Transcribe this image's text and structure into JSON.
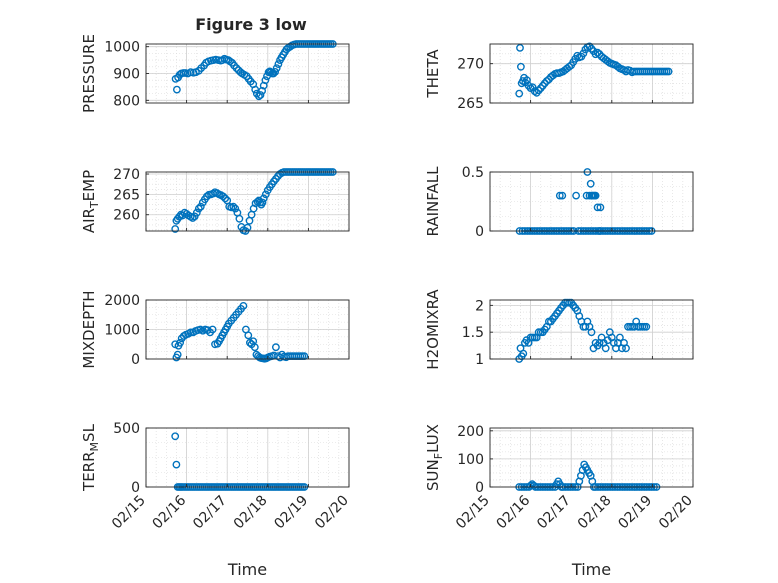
{
  "figure": {
    "title": "Figure 3 low",
    "marker_color": "#0072BD",
    "xlabel": "Time",
    "xtick_labels": [
      "02/15",
      "02/16",
      "02/17",
      "02/18",
      "02/19",
      "02/20"
    ]
  },
  "chart_data": [
    {
      "type": "scatter",
      "ylabel": "PRESSURE",
      "ylim": [
        790,
        1010
      ],
      "yticks": [
        800,
        900,
        1000
      ],
      "ytick_labels": [
        "800",
        "900",
        "1000"
      ],
      "xlim": [
        "02/15",
        "02/20"
      ],
      "grid": true,
      "x": [
        0.73,
        0.76,
        0.79,
        0.83,
        0.87,
        0.92,
        0.97,
        1.03,
        1.1,
        1.17,
        1.23,
        1.3,
        1.36,
        1.43,
        1.48,
        1.54,
        1.6,
        1.66,
        1.72,
        1.78,
        1.84,
        1.88,
        1.93,
        1.98,
        2.03,
        2.07,
        2.12,
        2.17,
        2.23,
        2.28,
        2.33,
        2.37,
        2.42,
        2.48,
        2.53,
        2.58,
        2.64,
        2.69,
        2.73,
        2.78,
        2.82,
        2.86,
        2.9,
        2.94,
        2.98,
        3.02,
        3.05,
        3.08,
        3.11,
        3.14,
        3.18,
        3.22,
        3.26,
        3.3,
        3.34,
        3.38,
        3.42,
        3.46,
        3.5,
        3.55,
        3.6,
        3.65,
        3.7,
        3.75,
        3.8,
        3.85,
        3.9,
        3.95,
        4.0,
        4.05,
        4.1,
        4.15,
        4.2,
        4.25,
        4.3,
        4.35,
        4.4,
        4.45,
        4.5,
        4.55,
        4.6
      ],
      "y": [
        880,
        840,
        885,
        895,
        900,
        902,
        902,
        900,
        905,
        903,
        905,
        910,
        920,
        930,
        940,
        945,
        948,
        950,
        952,
        950,
        948,
        950,
        955,
        952,
        950,
        945,
        940,
        930,
        920,
        912,
        905,
        900,
        895,
        890,
        880,
        870,
        860,
        840,
        825,
        815,
        820,
        835,
        855,
        875,
        890,
        905,
        908,
        905,
        900,
        900,
        906,
        920,
        935,
        950,
        960,
        970,
        980,
        990,
        995,
        1000,
        1005,
        1008,
        1010,
        1010,
        1010,
        1010,
        1010,
        1010,
        1010,
        1010,
        1010,
        1010,
        1010,
        1010,
        1010,
        1010,
        1010,
        1010,
        1010,
        1010,
        1010
      ]
    },
    {
      "type": "scatter",
      "ylabel": "THETA",
      "ylim": [
        265,
        272.5
      ],
      "yticks": [
        265,
        270
      ],
      "ytick_labels": [
        "265",
        "270"
      ],
      "xlim": [
        "02/15",
        "02/20"
      ],
      "grid": true,
      "x": [
        0.72,
        0.74,
        0.76,
        0.78,
        0.81,
        0.84,
        0.87,
        0.91,
        0.95,
        1.0,
        1.05,
        1.1,
        1.15,
        1.2,
        1.25,
        1.3,
        1.35,
        1.4,
        1.45,
        1.5,
        1.55,
        1.6,
        1.65,
        1.7,
        1.75,
        1.8,
        1.85,
        1.9,
        1.95,
        2.0,
        2.05,
        2.1,
        2.15,
        2.2,
        2.25,
        2.3,
        2.35,
        2.4,
        2.45,
        2.5,
        2.55,
        2.6,
        2.65,
        2.7,
        2.75,
        2.8,
        2.85,
        2.9,
        2.95,
        3.0,
        3.05,
        3.1,
        3.15,
        3.2,
        3.25,
        3.3,
        3.35,
        3.4,
        3.45,
        3.5,
        3.55,
        3.6,
        3.65,
        3.7,
        3.75,
        3.8,
        3.85,
        3.9,
        3.95,
        4.0,
        4.05,
        4.1,
        4.15,
        4.2,
        4.25,
        4.3,
        4.35,
        4.4
      ],
      "y": [
        266.2,
        272.0,
        269.6,
        267.5,
        267.8,
        268.2,
        267.6,
        267.9,
        267.2,
        266.9,
        267.0,
        266.5,
        266.3,
        266.6,
        266.9,
        267.2,
        267.5,
        267.8,
        268.0,
        268.3,
        268.5,
        268.7,
        268.8,
        268.8,
        268.9,
        269.0,
        269.2,
        269.4,
        269.6,
        269.8,
        270.2,
        270.6,
        271.0,
        270.8,
        270.9,
        271.3,
        271.8,
        272.1,
        272.2,
        271.9,
        271.6,
        271.2,
        271.4,
        271.2,
        270.9,
        270.7,
        270.5,
        270.3,
        270.1,
        270.0,
        269.9,
        269.8,
        269.6,
        269.4,
        269.3,
        269.2,
        269.0,
        269.2,
        269.1,
        268.9,
        269.0,
        269.0,
        269.0,
        269.0,
        269.0,
        269.0,
        269.0,
        269.0,
        269.0,
        269.0,
        269.0,
        269.0,
        269.0,
        269.0,
        269.0,
        269.0,
        269.0,
        269.0
      ]
    },
    {
      "type": "scatter",
      "ylabel": "AIR_TEMP",
      "ylim": [
        256,
        270.5
      ],
      "yticks": [
        260,
        265,
        270
      ],
      "ytick_labels": [
        "260",
        "265",
        "270"
      ],
      "xlim": [
        "02/15",
        "02/20"
      ],
      "grid": true,
      "x": [
        0.72,
        0.75,
        0.78,
        0.82,
        0.86,
        0.9,
        0.95,
        1.0,
        1.05,
        1.1,
        1.15,
        1.2,
        1.25,
        1.3,
        1.35,
        1.4,
        1.45,
        1.5,
        1.55,
        1.6,
        1.65,
        1.7,
        1.75,
        1.8,
        1.85,
        1.9,
        1.95,
        2.0,
        2.05,
        2.1,
        2.15,
        2.2,
        2.25,
        2.3,
        2.35,
        2.4,
        2.45,
        2.5,
        2.55,
        2.6,
        2.65,
        2.7,
        2.75,
        2.78,
        2.81,
        2.84,
        2.87,
        2.9,
        2.95,
        3.0,
        3.05,
        3.1,
        3.15,
        3.2,
        3.25,
        3.3,
        3.35,
        3.4,
        3.45,
        3.5,
        3.55,
        3.6,
        3.65,
        3.7,
        3.75,
        3.8,
        3.85,
        3.9,
        3.95,
        4.0,
        4.05,
        4.1,
        4.15,
        4.2,
        4.25,
        4.3,
        4.35,
        4.4,
        4.45,
        4.5,
        4.55,
        4.6
      ],
      "y": [
        256.5,
        258.5,
        259.0,
        259.5,
        260.0,
        259.8,
        260.5,
        260.2,
        259.8,
        259.5,
        259.2,
        259.6,
        260.5,
        261.5,
        262.0,
        263.0,
        263.8,
        264.5,
        264.9,
        265.0,
        265.2,
        265.5,
        265.3,
        265.0,
        264.8,
        264.5,
        264.0,
        263.5,
        262.0,
        261.8,
        262.0,
        261.5,
        260.5,
        259.0,
        257.0,
        256.2,
        256.0,
        256.8,
        258.5,
        260.0,
        261.5,
        262.8,
        263.2,
        263.5,
        263.0,
        262.5,
        263.0,
        264.0,
        265.0,
        266.0,
        266.8,
        267.5,
        268.2,
        268.8,
        269.5,
        270.0,
        270.3,
        270.5,
        270.5,
        270.5,
        270.5,
        270.5,
        270.5,
        270.5,
        270.5,
        270.5,
        270.5,
        270.5,
        270.5,
        270.5,
        270.5,
        270.5,
        270.5,
        270.5,
        270.5,
        270.5,
        270.5,
        270.5,
        270.5,
        270.5,
        270.5,
        270.5
      ]
    },
    {
      "type": "scatter",
      "ylabel": "RAINFALL",
      "ylim": [
        0,
        0.5
      ],
      "yticks": [
        0,
        0.5
      ],
      "ytick_labels": [
        "0",
        "0.5"
      ],
      "xlim": [
        "02/15",
        "02/20"
      ],
      "grid": true,
      "x": [
        0.73,
        0.8,
        0.86,
        0.92,
        0.98,
        1.04,
        1.1,
        1.16,
        1.22,
        1.28,
        1.34,
        1.4,
        1.46,
        1.52,
        1.58,
        1.64,
        1.7,
        1.72,
        1.76,
        1.78,
        1.82,
        1.88,
        1.94,
        2.0,
        2.06,
        2.12,
        2.18,
        2.24,
        2.3,
        2.36,
        2.42,
        2.48,
        2.54,
        2.6,
        2.66,
        2.72,
        2.78,
        2.84,
        2.9,
        2.96,
        3.02,
        3.08,
        3.14,
        3.2,
        3.26,
        3.32,
        3.38,
        3.44,
        3.5,
        3.56,
        3.62,
        3.68,
        3.74,
        3.8,
        3.86,
        3.92,
        3.98,
        2.38,
        2.4,
        2.45,
        2.48,
        2.5,
        2.52,
        2.55,
        2.58,
        2.6,
        2.65,
        2.7,
        2.72
      ],
      "y": [
        0,
        0,
        0,
        0,
        0,
        0,
        0,
        0,
        0,
        0,
        0,
        0,
        0,
        0,
        0,
        0,
        0,
        0.3,
        0,
        0.3,
        0,
        0,
        0,
        0,
        0,
        0.3,
        0,
        0,
        0,
        0,
        0,
        0,
        0,
        0,
        0,
        0,
        0,
        0,
        0,
        0,
        0,
        0,
        0,
        0,
        0,
        0,
        0,
        0,
        0,
        0,
        0,
        0,
        0,
        0,
        0,
        0,
        0,
        0.3,
        0.5,
        0.3,
        0.4,
        0.3,
        0.3,
        0.3,
        0.3,
        0.3,
        0.2,
        0,
        0.2
      ]
    },
    {
      "type": "scatter",
      "ylabel": "MIXDEPTH",
      "ylim": [
        0,
        2000
      ],
      "yticks": [
        0,
        1000,
        2000
      ],
      "ytick_labels": [
        "0",
        "1000",
        "2000"
      ],
      "xlim": [
        "02/15",
        "02/20"
      ],
      "grid": true,
      "x": [
        0.72,
        0.75,
        0.78,
        0.8,
        0.84,
        0.88,
        0.93,
        0.98,
        1.04,
        1.1,
        1.16,
        1.22,
        1.28,
        1.34,
        1.4,
        1.46,
        1.52,
        1.58,
        1.64,
        1.7,
        1.76,
        1.8,
        1.84,
        1.88,
        1.92,
        1.96,
        2.0,
        2.04,
        2.1,
        2.16,
        2.22,
        2.28,
        2.34,
        2.4,
        2.46,
        2.52,
        2.56,
        2.6,
        2.64,
        2.68,
        2.72,
        2.76,
        2.8,
        2.84,
        2.88,
        2.92,
        2.96,
        3.0,
        3.05,
        3.1,
        3.15,
        3.2,
        3.25,
        3.3,
        3.35,
        3.4,
        3.45,
        3.5,
        3.55,
        3.6,
        3.65,
        3.7,
        3.75,
        3.8,
        3.85,
        3.9
      ],
      "y": [
        500,
        50,
        150,
        450,
        550,
        700,
        780,
        820,
        850,
        900,
        900,
        950,
        980,
        1000,
        960,
        1000,
        980,
        900,
        1000,
        500,
        520,
        600,
        700,
        800,
        900,
        1000,
        1100,
        1200,
        1300,
        1400,
        1500,
        1600,
        1700,
        1800,
        1000,
        800,
        550,
        500,
        600,
        400,
        150,
        100,
        50,
        30,
        20,
        10,
        20,
        50,
        80,
        100,
        120,
        400,
        100,
        50,
        150,
        80,
        60,
        100,
        100,
        100,
        100,
        100,
        100,
        100,
        100,
        100
      ]
    },
    {
      "type": "scatter",
      "ylabel": "H2OMIXRA",
      "ylim": [
        1,
        2.1
      ],
      "yticks": [
        1,
        1.5,
        2
      ],
      "ytick_labels": [
        "1",
        "1.5",
        "2"
      ],
      "xlim": [
        "02/15",
        "02/20"
      ],
      "grid": true,
      "x": [
        0.72,
        0.75,
        0.78,
        0.82,
        0.86,
        0.9,
        0.95,
        1.0,
        1.05,
        1.1,
        1.15,
        1.2,
        1.25,
        1.3,
        1.35,
        1.4,
        1.45,
        1.5,
        1.55,
        1.6,
        1.65,
        1.7,
        1.75,
        1.8,
        1.85,
        1.9,
        1.95,
        2.0,
        2.05,
        2.1,
        2.15,
        2.2,
        2.25,
        2.3,
        2.35,
        2.4,
        2.45,
        2.5,
        2.55,
        2.6,
        2.65,
        2.7,
        2.75,
        2.8,
        2.85,
        2.9,
        2.95,
        3.0,
        3.05,
        3.1,
        3.15,
        3.2,
        3.25,
        3.3,
        3.35,
        3.4,
        3.45,
        3.5,
        3.55,
        3.6,
        3.65,
        3.7,
        3.75,
        3.8,
        3.85
      ],
      "y": [
        1.0,
        1.2,
        1.05,
        1.1,
        1.3,
        1.35,
        1.3,
        1.4,
        1.4,
        1.4,
        1.4,
        1.5,
        1.5,
        1.5,
        1.55,
        1.6,
        1.7,
        1.7,
        1.75,
        1.8,
        1.85,
        1.9,
        1.95,
        2.0,
        2.05,
        2.05,
        2.05,
        2.05,
        2.0,
        1.95,
        1.9,
        1.8,
        1.7,
        1.6,
        1.6,
        1.7,
        1.6,
        1.5,
        1.2,
        1.3,
        1.25,
        1.3,
        1.4,
        1.3,
        1.2,
        1.35,
        1.5,
        1.4,
        1.3,
        1.2,
        1.3,
        1.4,
        1.2,
        1.3,
        1.2,
        1.6,
        1.6,
        1.6,
        1.6,
        1.7,
        1.6,
        1.6,
        1.6,
        1.6,
        1.6
      ]
    },
    {
      "type": "scatter",
      "ylabel": "TERR_MSL",
      "ylim": [
        0,
        500
      ],
      "yticks": [
        0,
        500
      ],
      "ytick_labels": [
        "0",
        "500"
      ],
      "xlim": [
        "02/15",
        "02/20"
      ],
      "grid": true,
      "x": [
        0.72,
        0.75,
        0.78,
        0.82,
        0.86,
        0.9,
        0.95,
        1.0,
        1.05,
        1.1,
        1.15,
        1.2,
        1.25,
        1.3,
        1.35,
        1.4,
        1.45,
        1.5,
        1.55,
        1.6,
        1.65,
        1.7,
        1.75,
        1.8,
        1.85,
        1.9,
        1.95,
        2.0,
        2.05,
        2.1,
        2.15,
        2.2,
        2.25,
        2.3,
        2.35,
        2.4,
        2.45,
        2.5,
        2.55,
        2.6,
        2.65,
        2.7,
        2.75,
        2.8,
        2.85,
        2.9,
        2.95,
        3.0,
        3.05,
        3.1,
        3.15,
        3.2,
        3.25,
        3.3,
        3.35,
        3.4,
        3.45,
        3.5,
        3.55,
        3.6,
        3.65,
        3.7,
        3.75,
        3.8,
        3.85,
        3.9
      ],
      "y": [
        430,
        190,
        0,
        0,
        0,
        0,
        0,
        0,
        0,
        0,
        0,
        0,
        0,
        0,
        0,
        0,
        0,
        0,
        0,
        0,
        0,
        0,
        0,
        0,
        0,
        0,
        0,
        0,
        0,
        0,
        0,
        0,
        0,
        0,
        0,
        0,
        0,
        0,
        0,
        0,
        0,
        0,
        0,
        0,
        0,
        0,
        0,
        0,
        0,
        0,
        0,
        0,
        0,
        0,
        0,
        0,
        0,
        0,
        0,
        0,
        0,
        0,
        0,
        0,
        0,
        0
      ]
    },
    {
      "type": "scatter",
      "ylabel": "SUN_FLUX",
      "ylim": [
        0,
        210
      ],
      "yticks": [
        0,
        100,
        200
      ],
      "ytick_labels": [
        "0",
        "100",
        "200"
      ],
      "xlim": [
        "02/15",
        "02/20"
      ],
      "grid": true,
      "x": [
        0.72,
        0.78,
        0.84,
        0.9,
        0.96,
        1.0,
        1.04,
        1.08,
        1.12,
        1.18,
        1.24,
        1.3,
        1.36,
        1.42,
        1.48,
        1.54,
        1.6,
        1.64,
        1.68,
        1.72,
        1.76,
        1.8,
        1.86,
        1.92,
        1.98,
        2.04,
        2.1,
        2.16,
        2.2,
        2.24,
        2.28,
        2.32,
        2.36,
        2.4,
        2.44,
        2.48,
        2.52,
        2.56,
        2.6,
        2.66,
        2.72,
        2.78,
        2.84,
        2.9,
        2.96,
        3.02,
        3.08,
        3.14,
        3.2,
        3.26,
        3.32,
        3.38,
        3.44,
        3.5,
        3.56,
        3.62,
        3.68,
        3.74,
        3.8,
        3.86,
        3.92,
        3.98,
        4.04,
        4.1
      ],
      "y": [
        0,
        0,
        0,
        0,
        0,
        5,
        10,
        5,
        0,
        0,
        0,
        0,
        0,
        0,
        0,
        0,
        0,
        10,
        20,
        10,
        0,
        0,
        0,
        0,
        0,
        0,
        0,
        0,
        20,
        40,
        60,
        80,
        70,
        60,
        50,
        40,
        20,
        0,
        0,
        0,
        0,
        0,
        0,
        0,
        0,
        0,
        0,
        0,
        0,
        0,
        0,
        0,
        0,
        0,
        0,
        0,
        0,
        0,
        0,
        0,
        0,
        0,
        0,
        0
      ]
    }
  ]
}
